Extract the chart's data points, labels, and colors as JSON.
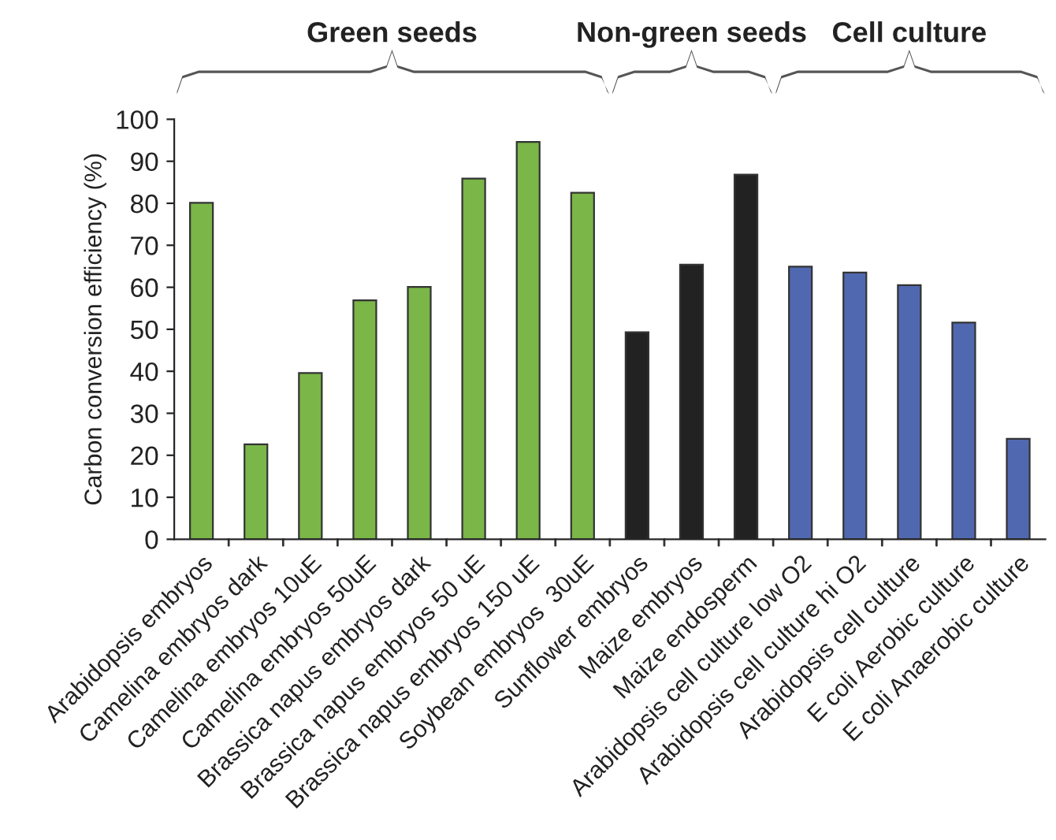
{
  "chart_data": {
    "type": "bar",
    "ylabel": "Carbon conversion efficiency (%)",
    "categories": [
      "Arabidopsis embryos",
      "Camelina embryos dark",
      "Camelina embryos 10uE",
      "Camelina embryos 50uE",
      "Brassica napus embryos dark",
      "Brassica napus embryos 50 uE",
      "Brassica napus embryos 150 uE",
      "Soybean embryos  30uE",
      "Sunflower embryos",
      "Maize embryos",
      "Maize endosperm",
      "Arabidopsis cell culture low O2",
      "Arabidopsis cell culture hi O2",
      "Arabidopsis cell culture",
      "E coli Aerobic culture",
      "E coli Anaerobic culture"
    ],
    "values": [
      80.1,
      22.6,
      39.6,
      56.9,
      60.1,
      85.9,
      94.6,
      82.5,
      49.3,
      65.4,
      86.8,
      64.9,
      63.5,
      60.5,
      51.6,
      23.9
    ],
    "colors": [
      "#7ab648",
      "#7ab648",
      "#7ab648",
      "#7ab648",
      "#7ab648",
      "#7ab648",
      "#7ab648",
      "#7ab648",
      "#222222",
      "#222222",
      "#222222",
      "#5068b0",
      "#5068b0",
      "#5068b0",
      "#5068b0",
      "#5068b0"
    ],
    "ylim": [
      0,
      100
    ],
    "yticks": [
      0,
      10,
      20,
      30,
      40,
      50,
      60,
      70,
      80,
      90,
      100
    ],
    "grid": false,
    "legend": false,
    "annotations": [
      "Green seeds",
      "Non-green seeds",
      "Cell culture"
    ]
  }
}
